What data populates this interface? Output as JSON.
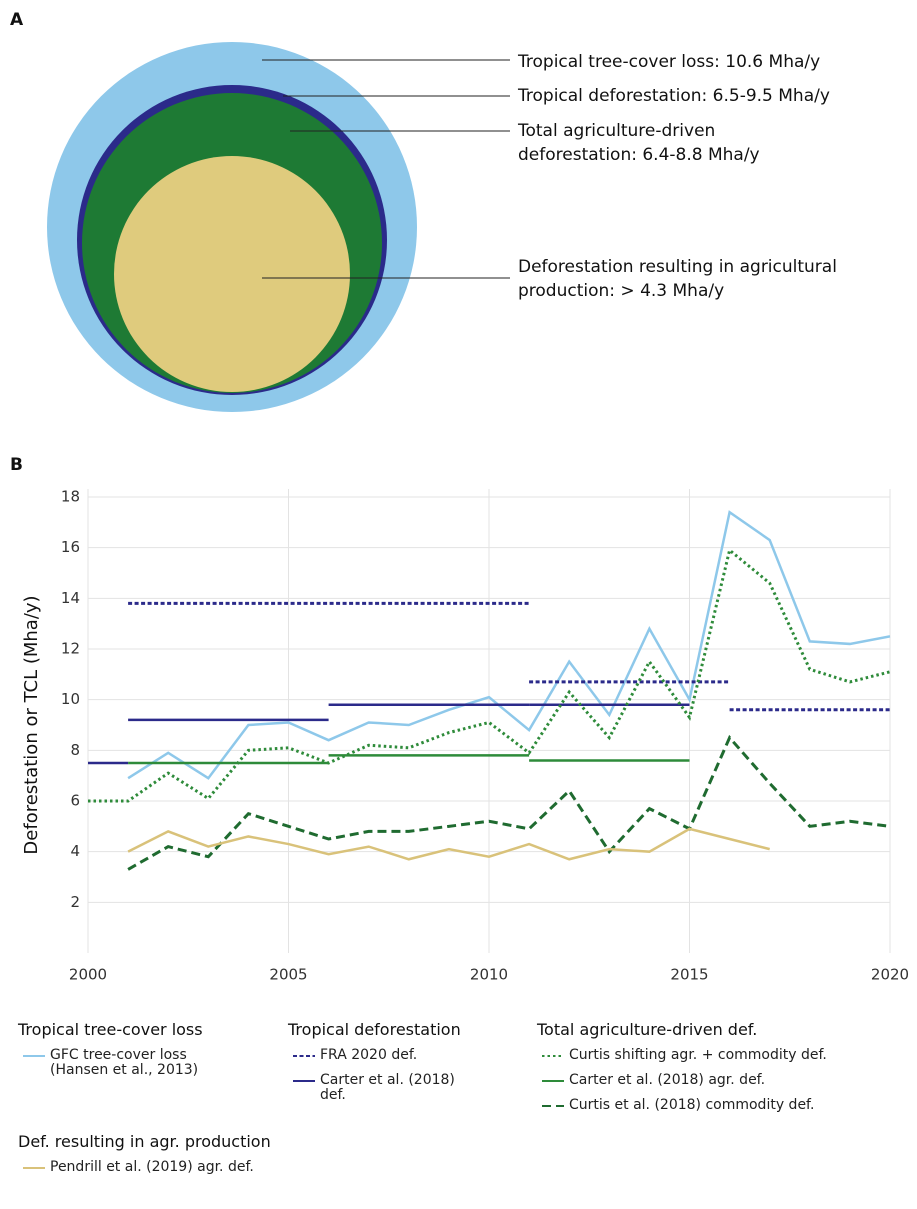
{
  "diagram": {
    "label": "A",
    "labels": [
      {
        "lines": [
          "Tropical tree-cover loss: 10.6 Mha/y"
        ]
      },
      {
        "lines": [
          "Tropical deforestation: 6.5-9.5 Mha/y"
        ]
      },
      {
        "lines": [
          "Total agriculture-driven",
          "deforestation: 6.4-8.8 Mha/y"
        ]
      },
      {
        "lines": [
          "Deforestation resulting in agricultural",
          "production: > 4.3 Mha/y"
        ]
      }
    ]
  },
  "chart_data": {
    "type": "line",
    "label": "B",
    "ylabel": "Deforestation or TCL (Mha/y)",
    "xlim": [
      2000,
      2020
    ],
    "xticks": [
      2000,
      2005,
      2010,
      2015,
      2020
    ],
    "ylim": [
      0,
      18
    ],
    "yticks": [
      2,
      4,
      6,
      8,
      10,
      12,
      14,
      16,
      18
    ],
    "grid": true,
    "groups": [
      {
        "title": "Tropical tree-cover loss",
        "series": [
          {
            "name": "GFC tree-cover loss (Hansen et al., 2013)",
            "color": "#8ec8ea",
            "style": "solid",
            "x": [
              2001,
              2002,
              2003,
              2004,
              2005,
              2006,
              2007,
              2008,
              2009,
              2010,
              2011,
              2012,
              2013,
              2014,
              2015,
              2016,
              2017,
              2018,
              2019,
              2020
            ],
            "values": [
              6.9,
              7.9,
              6.9,
              9.0,
              9.1,
              8.4,
              9.1,
              9.0,
              9.6,
              10.1,
              8.8,
              11.5,
              9.4,
              12.8,
              10.0,
              17.4,
              16.3,
              12.3,
              12.2,
              12.5
            ]
          }
        ]
      },
      {
        "title": "Tropical deforestation",
        "series": [
          {
            "name": "FRA 2020 def.",
            "color": "#2b2a8a",
            "style": "dashed-short",
            "periods": [
              [
                2001,
                2011
              ],
              [
                2011,
                2016
              ],
              [
                2016,
                2020
              ]
            ],
            "values": [
              13.8,
              10.7,
              9.6
            ]
          },
          {
            "name": "Carter et al. (2018) def.",
            "color": "#2b2a8a",
            "style": "solid",
            "periods": [
              [
                2000,
                2001
              ],
              [
                2001,
                2006
              ],
              [
                2006,
                2011
              ],
              [
                2011,
                2015
              ]
            ],
            "values": [
              7.5,
              9.2,
              9.8,
              9.8
            ]
          }
        ]
      },
      {
        "title": "Total agriculture-driven def.",
        "series": [
          {
            "name": "Curtis shifting agr. + commodity def.",
            "color": "#2e8b3a",
            "style": "dotted",
            "x": [
              2000,
              2001,
              2002,
              2003,
              2004,
              2005,
              2006,
              2007,
              2008,
              2009,
              2010,
              2011,
              2012,
              2013,
              2014,
              2015,
              2016,
              2017,
              2018,
              2019,
              2020
            ],
            "values": [
              6.0,
              6.0,
              7.1,
              6.1,
              8.0,
              8.1,
              7.5,
              8.2,
              8.1,
              8.7,
              9.1,
              7.9,
              10.3,
              8.5,
              11.5,
              9.3,
              15.9,
              14.6,
              11.2,
              10.7,
              11.1
            ]
          },
          {
            "name": "Carter et al. (2018) agr. def.",
            "color": "#2e8b3a",
            "style": "solid",
            "periods": [
              [
                2001,
                2006
              ],
              [
                2006,
                2011
              ],
              [
                2011,
                2015
              ]
            ],
            "values": [
              7.5,
              7.8,
              7.6
            ]
          },
          {
            "name": "Curtis et al. (2018) commodity def.",
            "color": "#1f6b30",
            "style": "dashed",
            "x": [
              2001,
              2002,
              2003,
              2004,
              2005,
              2006,
              2007,
              2008,
              2009,
              2010,
              2011,
              2012,
              2013,
              2014,
              2015,
              2016,
              2017,
              2018,
              2019,
              2020
            ],
            "values": [
              3.3,
              4.2,
              3.8,
              5.5,
              5.0,
              4.5,
              4.8,
              4.8,
              5.0,
              5.2,
              4.9,
              6.4,
              4.0,
              5.7,
              4.9,
              8.5,
              6.7,
              5.0,
              5.2,
              5.0
            ]
          }
        ]
      },
      {
        "title": "Def. resulting in agr. production",
        "series": [
          {
            "name": "Pendrill et al. (2019) agr. def.",
            "color": "#d9c27a",
            "style": "solid",
            "x": [
              2001,
              2002,
              2003,
              2004,
              2005,
              2006,
              2007,
              2008,
              2009,
              2010,
              2011,
              2012,
              2013,
              2014,
              2015,
              2016,
              2017
            ],
            "values": [
              4.0,
              4.8,
              4.2,
              4.6,
              4.3,
              3.9,
              4.2,
              3.7,
              4.1,
              3.8,
              4.3,
              3.7,
              4.1,
              4.0,
              4.9,
              4.5,
              4.1
            ]
          }
        ]
      }
    ]
  }
}
